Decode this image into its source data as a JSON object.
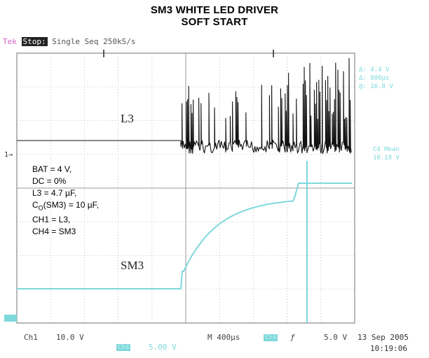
{
  "title_line1": "SM3 WHITE LED DRIVER",
  "title_line2": "SOFT START",
  "scope_status": {
    "brand": "Tek",
    "state": "Stop:",
    "mode": "Single Seq",
    "rate": "250kS/s"
  },
  "trace_labels": {
    "l3": "L3",
    "sm3": "SM3"
  },
  "notes": [
    "BAT = 4 V,",
    "DC = 0%",
    "L3 = 4.7 µF,",
    "CO(SM3) = 10 µF,",
    "CH1 = L3,",
    "CH4 = SM3"
  ],
  "cursor_readouts": [
    "Δ: 4.4 V",
    "Δ: 800µs",
    "@: 16.8 V"
  ],
  "ch4_readout": [
    "C4 Mean",
    "10.18 V"
  ],
  "bottom_bar": {
    "ch1": "Ch1",
    "ch1_scale": "10.0 V",
    "timebase": "M 400µs",
    "trigger_ch": "Ch4",
    "trigger_level": "5.0 V",
    "ch4": "Ch4",
    "ch4_scale": "5.00 V"
  },
  "date": "13 Sep 2005",
  "time": "10:19:06",
  "colors": {
    "trace_ch1": "#111111",
    "trace_ch4": "#7fd8dc",
    "grid": "#9a9a9a"
  }
}
